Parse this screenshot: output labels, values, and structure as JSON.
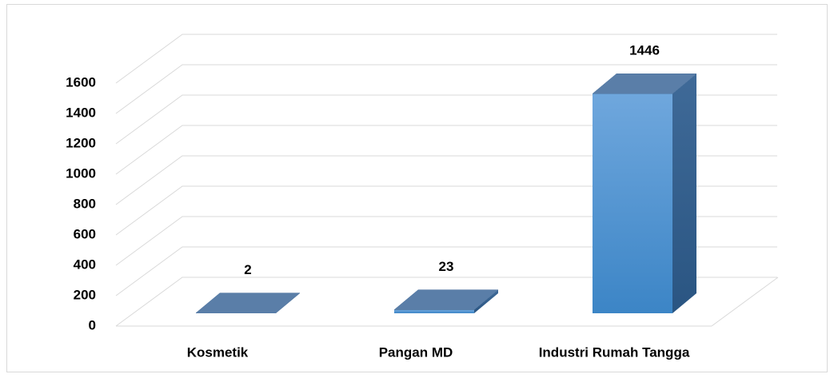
{
  "chart_data": {
    "type": "bar3d",
    "categories": [
      "Kosmetik",
      "Pangan MD",
      "Industri Rumah Tangga"
    ],
    "values": [
      2,
      23,
      1446
    ],
    "color": "#5b9bd5",
    "ylim": [
      0,
      1600
    ],
    "yticks": [
      0,
      200,
      400,
      600,
      800,
      1000,
      1200,
      1400,
      1600
    ],
    "grid": true
  }
}
